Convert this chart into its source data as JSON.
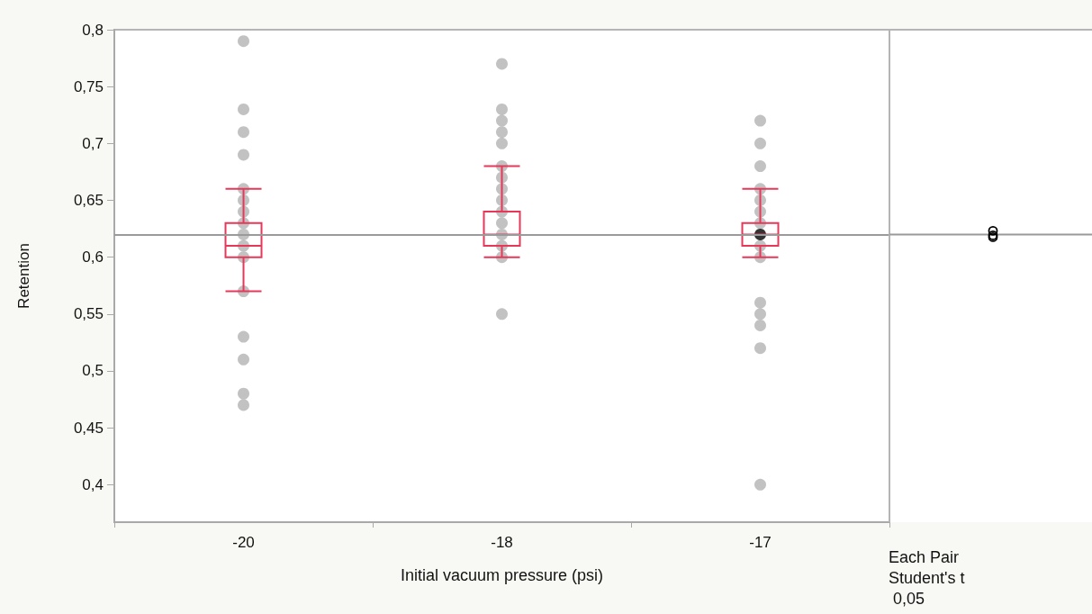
{
  "chart_data": {
    "type": "box",
    "categories": [
      "-20",
      "-18",
      "-17"
    ],
    "xlabel": "Initial vacuum pressure (psi)",
    "ylabel": "Retention",
    "ylim": [
      0.367,
      0.8
    ],
    "yticks": [
      {
        "value": 0.4,
        "label": "0,4"
      },
      {
        "value": 0.45,
        "label": "0,45"
      },
      {
        "value": 0.5,
        "label": "0,5"
      },
      {
        "value": 0.55,
        "label": "0,55"
      },
      {
        "value": 0.6,
        "label": "0,6"
      },
      {
        "value": 0.65,
        "label": "0,65"
      },
      {
        "value": 0.7,
        "label": "0,7"
      },
      {
        "value": 0.75,
        "label": "0,75"
      },
      {
        "value": 0.8,
        "label": "0,8"
      }
    ],
    "grid": false,
    "marker": "circle",
    "annotations": [
      "Each Pair\nStudent's t\n 0,05"
    ],
    "ref_lines": [
      {
        "axis": "y",
        "value": 0.62,
        "color": "#9a9a9a"
      }
    ],
    "series": [
      {
        "type": "scatter",
        "color": "#b3b3b3",
        "x": [
          "-20",
          "-20",
          "-20",
          "-20",
          "-20",
          "-20",
          "-20",
          "-20",
          "-20",
          "-20",
          "-20",
          "-20",
          "-20",
          "-20",
          "-20",
          "-20",
          "-18",
          "-18",
          "-18",
          "-18",
          "-18",
          "-18",
          "-18",
          "-18",
          "-18",
          "-18",
          "-18",
          "-18",
          "-18",
          "-18",
          "-18",
          "-17",
          "-17",
          "-17",
          "-17",
          "-17",
          "-17",
          "-17",
          "-17",
          "-17",
          "-17",
          "-17",
          "-17",
          "-17",
          "-17"
        ],
        "values": [
          0.79,
          0.73,
          0.71,
          0.69,
          0.66,
          0.65,
          0.64,
          0.63,
          0.62,
          0.61,
          0.6,
          0.57,
          0.53,
          0.51,
          0.48,
          0.47,
          0.77,
          0.73,
          0.72,
          0.71,
          0.7,
          0.68,
          0.67,
          0.66,
          0.65,
          0.64,
          0.63,
          0.62,
          0.61,
          0.6,
          0.55,
          0.72,
          0.7,
          0.68,
          0.66,
          0.65,
          0.64,
          0.63,
          0.61,
          0.6,
          0.56,
          0.55,
          0.54,
          0.52,
          0.4
        ]
      },
      {
        "color": "#e8385a",
        "boxes": [
          {
            "low": 0.57,
            "q1": 0.6,
            "median": 0.61,
            "q3": 0.63,
            "high": 0.66
          },
          {
            "low": 0.6,
            "q1": 0.61,
            "median": 0.62,
            "q3": 0.64,
            "high": 0.68
          },
          {
            "low": 0.6,
            "q1": 0.61,
            "median": 0.62,
            "q3": 0.63,
            "high": 0.66
          }
        ]
      },
      {
        "type": "scatter",
        "color": "#000000",
        "x": [
          "-17"
        ],
        "values": [
          0.62
        ]
      }
    ]
  }
}
